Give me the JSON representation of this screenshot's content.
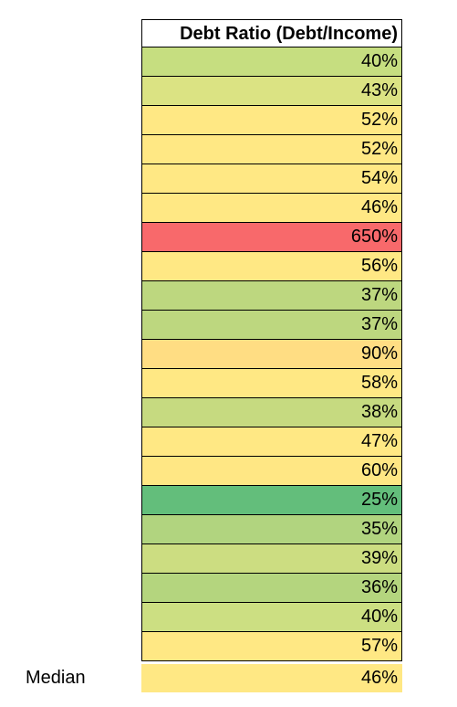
{
  "header": {
    "title": "Debt Ratio (Debt/Income)"
  },
  "rows": [
    {
      "value": "40%",
      "color": "#C6DE80"
    },
    {
      "value": "43%",
      "color": "#DBE383"
    },
    {
      "value": "52%",
      "color": "#FFE884"
    },
    {
      "value": "52%",
      "color": "#FFE884"
    },
    {
      "value": "54%",
      "color": "#FFE884"
    },
    {
      "value": "46%",
      "color": "#FFE884"
    },
    {
      "value": "650%",
      "color": "#F8696B"
    },
    {
      "value": "56%",
      "color": "#FFE884"
    },
    {
      "value": "37%",
      "color": "#BDD77F"
    },
    {
      "value": "37%",
      "color": "#BDD77F"
    },
    {
      "value": "90%",
      "color": "#FFDD83"
    },
    {
      "value": "58%",
      "color": "#FFE884"
    },
    {
      "value": "38%",
      "color": "#C6DA80"
    },
    {
      "value": "47%",
      "color": "#FFE884"
    },
    {
      "value": "60%",
      "color": "#FFE784"
    },
    {
      "value": "25%",
      "color": "#63BE7B"
    },
    {
      "value": "35%",
      "color": "#B1D47F"
    },
    {
      "value": "39%",
      "color": "#CCDD81"
    },
    {
      "value": "36%",
      "color": "#B4D57E"
    },
    {
      "value": "40%",
      "color": "#CCDF82"
    },
    {
      "value": "57%",
      "color": "#FFE884"
    }
  ],
  "median": {
    "label": "Median",
    "value": "46%",
    "color": "#FFE884"
  }
}
